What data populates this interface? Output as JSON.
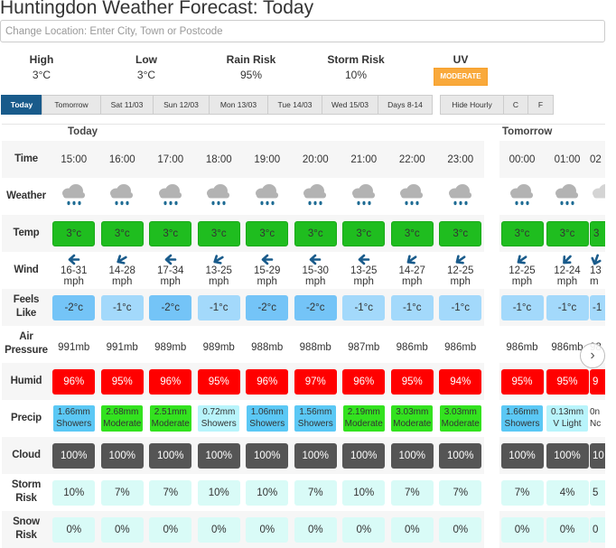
{
  "title": "Huntingdon Weather Forecast: Today",
  "search": {
    "placeholder": "Change Location: Enter City, Town or Postcode"
  },
  "summary": {
    "high_label": "High",
    "high": "3°C",
    "low_label": "Low",
    "low": "3°C",
    "rain_label": "Rain Risk",
    "rain": "95%",
    "storm_label": "Storm Risk",
    "storm": "10%",
    "uv_label": "UV",
    "uv": "MODERATE"
  },
  "tabs": [
    "Today",
    "Tomorrow",
    "Sat 11/03",
    "Sun 12/03",
    "Mon 13/03",
    "Tue 14/03",
    "Wed 15/03",
    "Days 8-14"
  ],
  "options": [
    "Hide Hourly",
    "C",
    "F"
  ],
  "row_labels": [
    "Time",
    "Weather",
    "Temp",
    "Wind",
    "Feels Like",
    "Air Pressure",
    "Humid",
    "Precip",
    "Cloud",
    "Storm Risk",
    "Snow Risk"
  ],
  "colors": {
    "temp": "#1fbd1f",
    "feels_dark": "#74c4f7",
    "feels_light": "#a3d9fb",
    "humid": "#ff0000",
    "showers": "#5bc8f5",
    "light": "#b8f4fb",
    "moderate": "#33e21f",
    "cloud": "#555555",
    "risk": "#d9fbf7",
    "accent": "#195b8b",
    "uv": "#f9a93b"
  },
  "days": [
    {
      "label": "Today",
      "hours": [
        {
          "time": "15:00",
          "temp": "3°c",
          "wind": "16-31",
          "unit": "mph",
          "dir": 90,
          "feels": "-2°c",
          "fl": "dark",
          "pressure": "991mb",
          "humid": "96%",
          "mm": "1.66mm",
          "ptype": "Showers",
          "pc": "showers",
          "cloud": "100%",
          "storm": "10%",
          "snow": "0%"
        },
        {
          "time": "16:00",
          "temp": "3°c",
          "wind": "14-28",
          "unit": "mph",
          "dir": 60,
          "feels": "-1°c",
          "fl": "light",
          "pressure": "991mb",
          "humid": "95%",
          "mm": "2.68mm",
          "ptype": "Moderate",
          "pc": "moderate",
          "cloud": "100%",
          "storm": "7%",
          "snow": "0%"
        },
        {
          "time": "17:00",
          "temp": "3°c",
          "wind": "17-34",
          "unit": "mph",
          "dir": 90,
          "feels": "-2°c",
          "fl": "dark",
          "pressure": "989mb",
          "humid": "96%",
          "mm": "2.51mm",
          "ptype": "Moderate",
          "pc": "moderate",
          "cloud": "100%",
          "storm": "7%",
          "snow": "0%"
        },
        {
          "time": "18:00",
          "temp": "3°c",
          "wind": "13-25",
          "unit": "mph",
          "dir": 60,
          "feels": "-1°c",
          "fl": "light",
          "pressure": "989mb",
          "humid": "95%",
          "mm": "0.72mm",
          "ptype": "Showers",
          "pc": "light",
          "cloud": "100%",
          "storm": "10%",
          "snow": "0%"
        },
        {
          "time": "19:00",
          "temp": "3°c",
          "wind": "15-29",
          "unit": "mph",
          "dir": 90,
          "feels": "-2°c",
          "fl": "dark",
          "pressure": "988mb",
          "humid": "96%",
          "mm": "1.06mm",
          "ptype": "Showers",
          "pc": "showers",
          "cloud": "100%",
          "storm": "10%",
          "snow": "0%"
        },
        {
          "time": "20:00",
          "temp": "3°c",
          "wind": "15-30",
          "unit": "mph",
          "dir": 90,
          "feels": "-2°c",
          "fl": "dark",
          "pressure": "988mb",
          "humid": "97%",
          "mm": "1.56mm",
          "ptype": "Showers",
          "pc": "showers",
          "cloud": "100%",
          "storm": "7%",
          "snow": "0%"
        },
        {
          "time": "21:00",
          "temp": "3°c",
          "wind": "13-25",
          "unit": "mph",
          "dir": 90,
          "feels": "-1°c",
          "fl": "light",
          "pressure": "987mb",
          "humid": "96%",
          "mm": "2.19mm",
          "ptype": "Moderate",
          "pc": "moderate",
          "cloud": "100%",
          "storm": "10%",
          "snow": "0%"
        },
        {
          "time": "22:00",
          "temp": "3°c",
          "wind": "14-27",
          "unit": "mph",
          "dir": 55,
          "feels": "-1°c",
          "fl": "light",
          "pressure": "986mb",
          "humid": "95%",
          "mm": "3.03mm",
          "ptype": "Moderate",
          "pc": "moderate",
          "cloud": "100%",
          "storm": "7%",
          "snow": "0%"
        },
        {
          "time": "23:00",
          "temp": "3°c",
          "wind": "12-25",
          "unit": "mph",
          "dir": 55,
          "feels": "-1°c",
          "fl": "light",
          "pressure": "986mb",
          "humid": "94%",
          "mm": "3.03mm",
          "ptype": "Moderate",
          "pc": "moderate",
          "cloud": "100%",
          "storm": "7%",
          "snow": "0%"
        }
      ]
    },
    {
      "label": "Tomorrow",
      "hours": [
        {
          "time": "00:00",
          "temp": "3°c",
          "wind": "12-25",
          "unit": "mph",
          "dir": 55,
          "feels": "-1°c",
          "fl": "light",
          "pressure": "986mb",
          "humid": "95%",
          "mm": "1.66mm",
          "ptype": "Showers",
          "pc": "showers",
          "cloud": "100%",
          "storm": "7%",
          "snow": "0%"
        },
        {
          "time": "01:00",
          "temp": "3°c",
          "wind": "12-24",
          "unit": "mph",
          "dir": 45,
          "feels": "-1°c",
          "fl": "light",
          "pressure": "986mb",
          "humid": "95%",
          "mm": "0.13mm",
          "ptype": "V Light",
          "pc": "light",
          "cloud": "100%",
          "storm": "4%",
          "snow": "0%"
        },
        {
          "time": "02",
          "temp": "3",
          "wind": "13",
          "unit": "m",
          "dir": 20,
          "feels": "-1",
          "fl": "light",
          "pressure": "98",
          "humid": "9",
          "mm": "0n",
          "ptype": "Nc",
          "pc": "none",
          "cloud": "10",
          "storm": "5",
          "snow": "0",
          "partial": true
        }
      ]
    }
  ],
  "next_label": "›"
}
